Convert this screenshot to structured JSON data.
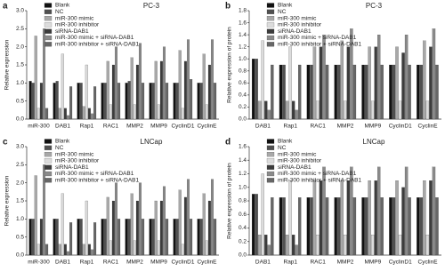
{
  "chart_data": [
    {
      "type": "bar",
      "label": "a",
      "title": "PC-3",
      "y_label": "Relative expression",
      "categories": [
        "miR-300",
        "DAB1",
        "Rap1",
        "RAC1",
        "MMP2",
        "MMP9",
        "CyclinD1",
        "CyclinE"
      ],
      "ylim": [
        0,
        3
      ],
      "yticks": [
        {
          "value": 0,
          "label": "0.0"
        },
        {
          "value": 0.5,
          "label": "0.5"
        },
        {
          "value": 1,
          "label": "1.0"
        },
        {
          "value": 1.5,
          "label": "1.5"
        },
        {
          "value": 2,
          "label": "2.0"
        },
        {
          "value": 2.5,
          "label": "2.5"
        },
        {
          "value": 3,
          "label": "3.0"
        }
      ],
      "series": [
        {
          "name": "Blank",
          "color": "#111111",
          "values": [
            1.05,
            1.0,
            1.0,
            1.0,
            1.0,
            1.0,
            1.0,
            1.0
          ]
        },
        {
          "name": "NC",
          "color": "#505050",
          "values": [
            1.0,
            1.05,
            1.0,
            1.0,
            1.05,
            1.0,
            1.0,
            1.0
          ]
        },
        {
          "name": "miR-300 mimic",
          "color": "#a8a8a8",
          "values": [
            2.3,
            0.3,
            0.35,
            1.6,
            1.7,
            1.6,
            1.9,
            1.8
          ]
        },
        {
          "name": "miR-300 inhibitor",
          "color": "#dcdcdc",
          "values": [
            0.3,
            1.8,
            1.5,
            0.4,
            0.4,
            0.4,
            0.3,
            0.4
          ]
        },
        {
          "name": "siRNA-DAB1",
          "color": "#3c3c3c",
          "values": [
            1.0,
            0.3,
            0.3,
            1.5,
            1.5,
            1.6,
            1.6,
            1.5
          ]
        },
        {
          "name": "miR-300 mimic + siRNA-DAB1",
          "color": "#8a8a8a",
          "values": [
            2.5,
            0.1,
            0.15,
            2.0,
            2.1,
            2.0,
            2.2,
            2.2
          ]
        },
        {
          "name": "miR-300 inhibitor + siRNA-DAB1",
          "color": "#666666",
          "values": [
            0.3,
            0.9,
            0.9,
            1.0,
            1.0,
            1.0,
            1.1,
            1.0
          ]
        }
      ]
    },
    {
      "type": "bar",
      "label": "b",
      "title": "PC-3",
      "y_label": "Relative expression of protein",
      "categories": [
        "DAB1",
        "Rap1",
        "RAC1",
        "MMP2",
        "MMP9",
        "CyclinD1",
        "CyclinE"
      ],
      "ylim": [
        0,
        1.8
      ],
      "yticks": [
        {
          "value": 0,
          "label": "0.0"
        },
        {
          "value": 0.2,
          "label": "0.2"
        },
        {
          "value": 0.4,
          "label": "0.4"
        },
        {
          "value": 0.6,
          "label": "0.6"
        },
        {
          "value": 0.8,
          "label": "0.8"
        },
        {
          "value": 1,
          "label": "1.0"
        },
        {
          "value": 1.2,
          "label": "1.2"
        },
        {
          "value": 1.4,
          "label": "1.4"
        },
        {
          "value": 1.6,
          "label": "1.6"
        },
        {
          "value": 1.8,
          "label": "1.8"
        }
      ],
      "series": [
        {
          "name": "Blank",
          "color": "#111111",
          "values": [
            1.0,
            0.9,
            0.9,
            0.9,
            0.9,
            0.9,
            0.9
          ]
        },
        {
          "name": "NC",
          "color": "#505050",
          "values": [
            1.0,
            0.9,
            0.9,
            0.9,
            0.9,
            0.9,
            0.9
          ]
        },
        {
          "name": "miR-300 mimic",
          "color": "#a8a8a8",
          "values": [
            0.3,
            0.3,
            1.2,
            1.3,
            1.2,
            1.2,
            1.3
          ]
        },
        {
          "name": "miR-300 inhibitor",
          "color": "#dcdcdc",
          "values": [
            1.3,
            1.2,
            0.3,
            0.3,
            0.3,
            0.3,
            0.3
          ]
        },
        {
          "name": "siRNA-DAB1",
          "color": "#3c3c3c",
          "values": [
            0.3,
            0.3,
            1.2,
            1.2,
            1.2,
            1.1,
            1.2
          ]
        },
        {
          "name": "miR-300 mimic + siRNA-DAB1",
          "color": "#8a8a8a",
          "values": [
            0.15,
            0.15,
            1.4,
            1.5,
            1.4,
            1.4,
            1.5
          ]
        },
        {
          "name": "miR-300 inhibitor + siRNA-DAB1",
          "color": "#666666",
          "values": [
            0.9,
            0.9,
            0.9,
            0.9,
            0.9,
            0.9,
            0.9
          ]
        }
      ]
    },
    {
      "type": "bar",
      "label": "c",
      "title": "LNCap",
      "y_label": "Relative expression",
      "categories": [
        "miR-300",
        "DAB1",
        "Rap1",
        "RAC1",
        "MMP2",
        "MMP9",
        "CyclinD1",
        "CyclinE"
      ],
      "ylim": [
        0,
        3
      ],
      "yticks": [
        {
          "value": 0,
          "label": "0.0"
        },
        {
          "value": 0.5,
          "label": "0.5"
        },
        {
          "value": 1,
          "label": "1.0"
        },
        {
          "value": 1.5,
          "label": "1.5"
        },
        {
          "value": 2,
          "label": "2.0"
        },
        {
          "value": 2.5,
          "label": "2.5"
        },
        {
          "value": 3,
          "label": "3.0"
        }
      ],
      "series": [
        {
          "name": "Blank",
          "color": "#111111",
          "values": [
            1.0,
            1.0,
            1.0,
            1.0,
            1.0,
            1.0,
            1.0,
            1.0
          ]
        },
        {
          "name": "NC",
          "color": "#505050",
          "values": [
            1.0,
            1.0,
            1.0,
            1.0,
            1.0,
            1.0,
            1.0,
            1.0
          ]
        },
        {
          "name": "miR-300 mimic",
          "color": "#a8a8a8",
          "values": [
            2.2,
            0.3,
            0.3,
            1.6,
            1.7,
            1.5,
            1.8,
            1.7
          ]
        },
        {
          "name": "miR-300 inhibitor",
          "color": "#dcdcdc",
          "values": [
            0.3,
            1.7,
            1.5,
            0.4,
            0.4,
            0.4,
            0.3,
            0.4
          ]
        },
        {
          "name": "siRNA-DAB1",
          "color": "#3c3c3c",
          "values": [
            1.0,
            0.3,
            0.3,
            1.5,
            1.5,
            1.5,
            1.6,
            1.5
          ]
        },
        {
          "name": "miR-300 mimic + siRNA-DAB1",
          "color": "#8a8a8a",
          "values": [
            2.5,
            0.1,
            0.15,
            2.0,
            2.0,
            1.9,
            2.1,
            2.1
          ]
        },
        {
          "name": "miR-300 inhibitor + siRNA-DAB1",
          "color": "#666666",
          "values": [
            0.3,
            0.9,
            0.9,
            1.0,
            1.0,
            1.0,
            1.0,
            1.0
          ]
        }
      ]
    },
    {
      "type": "bar",
      "label": "d",
      "title": "LNCap",
      "y_label": "Relative expression of protein",
      "categories": [
        "DAB1",
        "Rap1",
        "RAC1",
        "MMP2",
        "MMP9",
        "CyclinD1",
        "CyclinE"
      ],
      "ylim": [
        0,
        1.6
      ],
      "yticks": [
        {
          "value": 0,
          "label": "0.0"
        },
        {
          "value": 0.2,
          "label": "0.2"
        },
        {
          "value": 0.4,
          "label": "0.4"
        },
        {
          "value": 0.6,
          "label": "0.6"
        },
        {
          "value": 0.8,
          "label": "0.8"
        },
        {
          "value": 1,
          "label": "1.0"
        },
        {
          "value": 1.2,
          "label": "1.2"
        },
        {
          "value": 1.4,
          "label": "1.4"
        },
        {
          "value": 1.6,
          "label": "1.6"
        }
      ],
      "series": [
        {
          "name": "Blank",
          "color": "#111111",
          "values": [
            0.9,
            0.85,
            0.85,
            0.85,
            0.85,
            0.85,
            0.85
          ]
        },
        {
          "name": "NC",
          "color": "#505050",
          "values": [
            0.9,
            0.85,
            0.85,
            0.85,
            0.85,
            0.85,
            0.85
          ]
        },
        {
          "name": "miR-300 mimic",
          "color": "#a8a8a8",
          "values": [
            0.3,
            0.3,
            1.1,
            1.1,
            1.1,
            1.1,
            1.1
          ]
        },
        {
          "name": "miR-300 inhibitor",
          "color": "#dcdcdc",
          "values": [
            1.2,
            1.1,
            0.3,
            0.3,
            0.3,
            0.3,
            0.3
          ]
        },
        {
          "name": "siRNA-DAB1",
          "color": "#3c3c3c",
          "values": [
            0.3,
            0.3,
            1.1,
            1.1,
            1.1,
            1.0,
            1.1
          ]
        },
        {
          "name": "miR-300 mimic + siRNA-DAB1",
          "color": "#8a8a8a",
          "values": [
            0.15,
            0.15,
            1.3,
            1.3,
            1.3,
            1.3,
            1.3
          ]
        },
        {
          "name": "miR-300 inhibitor + siRNA-DAB1",
          "color": "#666666",
          "values": [
            0.85,
            0.85,
            0.85,
            0.85,
            0.85,
            0.85,
            0.85
          ]
        }
      ]
    }
  ]
}
